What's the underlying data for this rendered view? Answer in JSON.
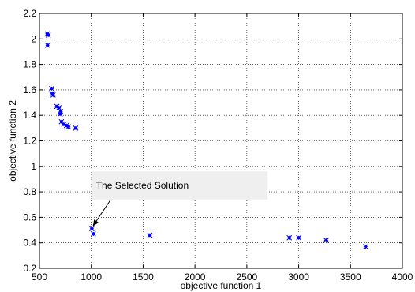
{
  "chart_data": {
    "type": "scatter",
    "xlabel": "objective function 1",
    "ylabel": "objective function 2",
    "xlim": [
      500,
      4000
    ],
    "ylim": [
      0.2,
      2.2
    ],
    "xticks": [
      500,
      1000,
      1500,
      2000,
      2500,
      3000,
      3500,
      4000
    ],
    "yticks": [
      0.2,
      0.4,
      0.6,
      0.8,
      1.0,
      1.2,
      1.4,
      1.6,
      1.8,
      2.0,
      2.2
    ],
    "xtick_labels": [
      "500",
      "1000",
      "1500",
      "2000",
      "2500",
      "3000",
      "3500",
      "4000"
    ],
    "ytick_labels": [
      "0.2",
      "0.4",
      "0.6",
      "0.8",
      "1",
      "1.2",
      "1.4",
      "1.6",
      "1.8",
      "2",
      "2.2"
    ],
    "grid": true,
    "marker_color": "#0000ff",
    "points": [
      {
        "x": 575,
        "y": 2.04
      },
      {
        "x": 585,
        "y": 2.03
      },
      {
        "x": 578,
        "y": 1.95
      },
      {
        "x": 618,
        "y": 1.61
      },
      {
        "x": 625,
        "y": 1.57
      },
      {
        "x": 632,
        "y": 1.56
      },
      {
        "x": 668,
        "y": 1.47
      },
      {
        "x": 688,
        "y": 1.46
      },
      {
        "x": 705,
        "y": 1.43
      },
      {
        "x": 700,
        "y": 1.41
      },
      {
        "x": 712,
        "y": 1.35
      },
      {
        "x": 735,
        "y": 1.33
      },
      {
        "x": 760,
        "y": 1.32
      },
      {
        "x": 780,
        "y": 1.31
      },
      {
        "x": 850,
        "y": 1.3
      },
      {
        "x": 1005,
        "y": 0.51
      },
      {
        "x": 1020,
        "y": 0.47
      },
      {
        "x": 1565,
        "y": 0.46
      },
      {
        "x": 2910,
        "y": 0.44
      },
      {
        "x": 3000,
        "y": 0.44
      },
      {
        "x": 3265,
        "y": 0.42
      },
      {
        "x": 3645,
        "y": 0.37
      }
    ],
    "annotation": {
      "text": "The Selected Solution",
      "box_x": [
        1000,
        2700
      ],
      "box_y": [
        0.74,
        0.96
      ],
      "arrow_from": {
        "x": 1180,
        "y": 0.73
      },
      "arrow_to": {
        "x": 1015,
        "y": 0.53
      }
    }
  }
}
